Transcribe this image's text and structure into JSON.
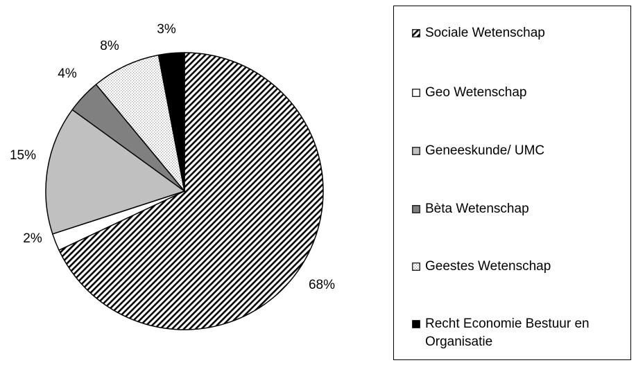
{
  "chart_data": {
    "type": "pie",
    "slices": [
      {
        "name": "Sociale Wetenschap",
        "value": 68,
        "label": "68%",
        "fill": "diagonal-hatch",
        "color": "#000000"
      },
      {
        "name": "Geo Wetenschap",
        "value": 2,
        "label": "2%",
        "fill": "solid",
        "color": "#ffffff"
      },
      {
        "name": "Geneeskunde/ UMC",
        "value": 15,
        "label": "15%",
        "fill": "solid",
        "color": "#c0c0c0"
      },
      {
        "name": "Bèta Wetenschap",
        "value": 4,
        "label": "4%",
        "fill": "solid",
        "color": "#808080"
      },
      {
        "name": "Geestes Wetenschap",
        "value": 8,
        "label": "8%",
        "fill": "dotted",
        "color": "#bfbfbf"
      },
      {
        "name": "Recht Economie Bestuur en Organisatie",
        "value": 3,
        "label": "3%",
        "fill": "solid",
        "color": "#000000"
      }
    ],
    "start_angle": "12 o'clock",
    "direction": "clockwise",
    "legend_position": "right",
    "legend": [
      "Sociale Wetenschap",
      "Geo Wetenschap",
      "Geneeskunde/ UMC",
      "Bèta Wetenschap",
      "Geestes Wetenschap",
      "Recht Economie Bestuur en Organisatie"
    ]
  }
}
